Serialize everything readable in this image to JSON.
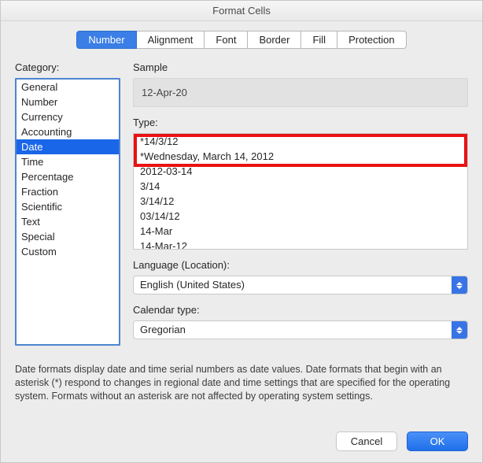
{
  "window": {
    "title": "Format Cells"
  },
  "tabs": {
    "items": [
      "Number",
      "Alignment",
      "Font",
      "Border",
      "Fill",
      "Protection"
    ],
    "active_index": 0
  },
  "labels": {
    "category": "Category:",
    "sample": "Sample",
    "type": "Type:",
    "language": "Language (Location):",
    "calendar": "Calendar type:"
  },
  "category": {
    "items": [
      "General",
      "Number",
      "Currency",
      "Accounting",
      "Date",
      "Time",
      "Percentage",
      "Fraction",
      "Scientific",
      "Text",
      "Special",
      "Custom"
    ],
    "selected_index": 4
  },
  "sample": {
    "value": "12-Apr-20"
  },
  "type": {
    "items": [
      "*14/3/12",
      "*Wednesday, March 14, 2012",
      "2012-03-14",
      "3/14",
      "3/14/12",
      "03/14/12",
      "14-Mar",
      "14-Mar-12"
    ],
    "highlight_count": 2
  },
  "language": {
    "value": "English (United States)"
  },
  "calendar": {
    "value": "Gregorian"
  },
  "description": "Date formats display date and time serial numbers as date values.  Date formats that begin with an asterisk (*) respond to changes in regional date and time settings that are specified for the operating system. Formats without an asterisk are not affected by operating system settings.",
  "buttons": {
    "cancel": "Cancel",
    "ok": "OK"
  },
  "colors": {
    "accent": "#1a66e8",
    "highlight_border": "#e91212",
    "window_bg": "#ececec"
  }
}
